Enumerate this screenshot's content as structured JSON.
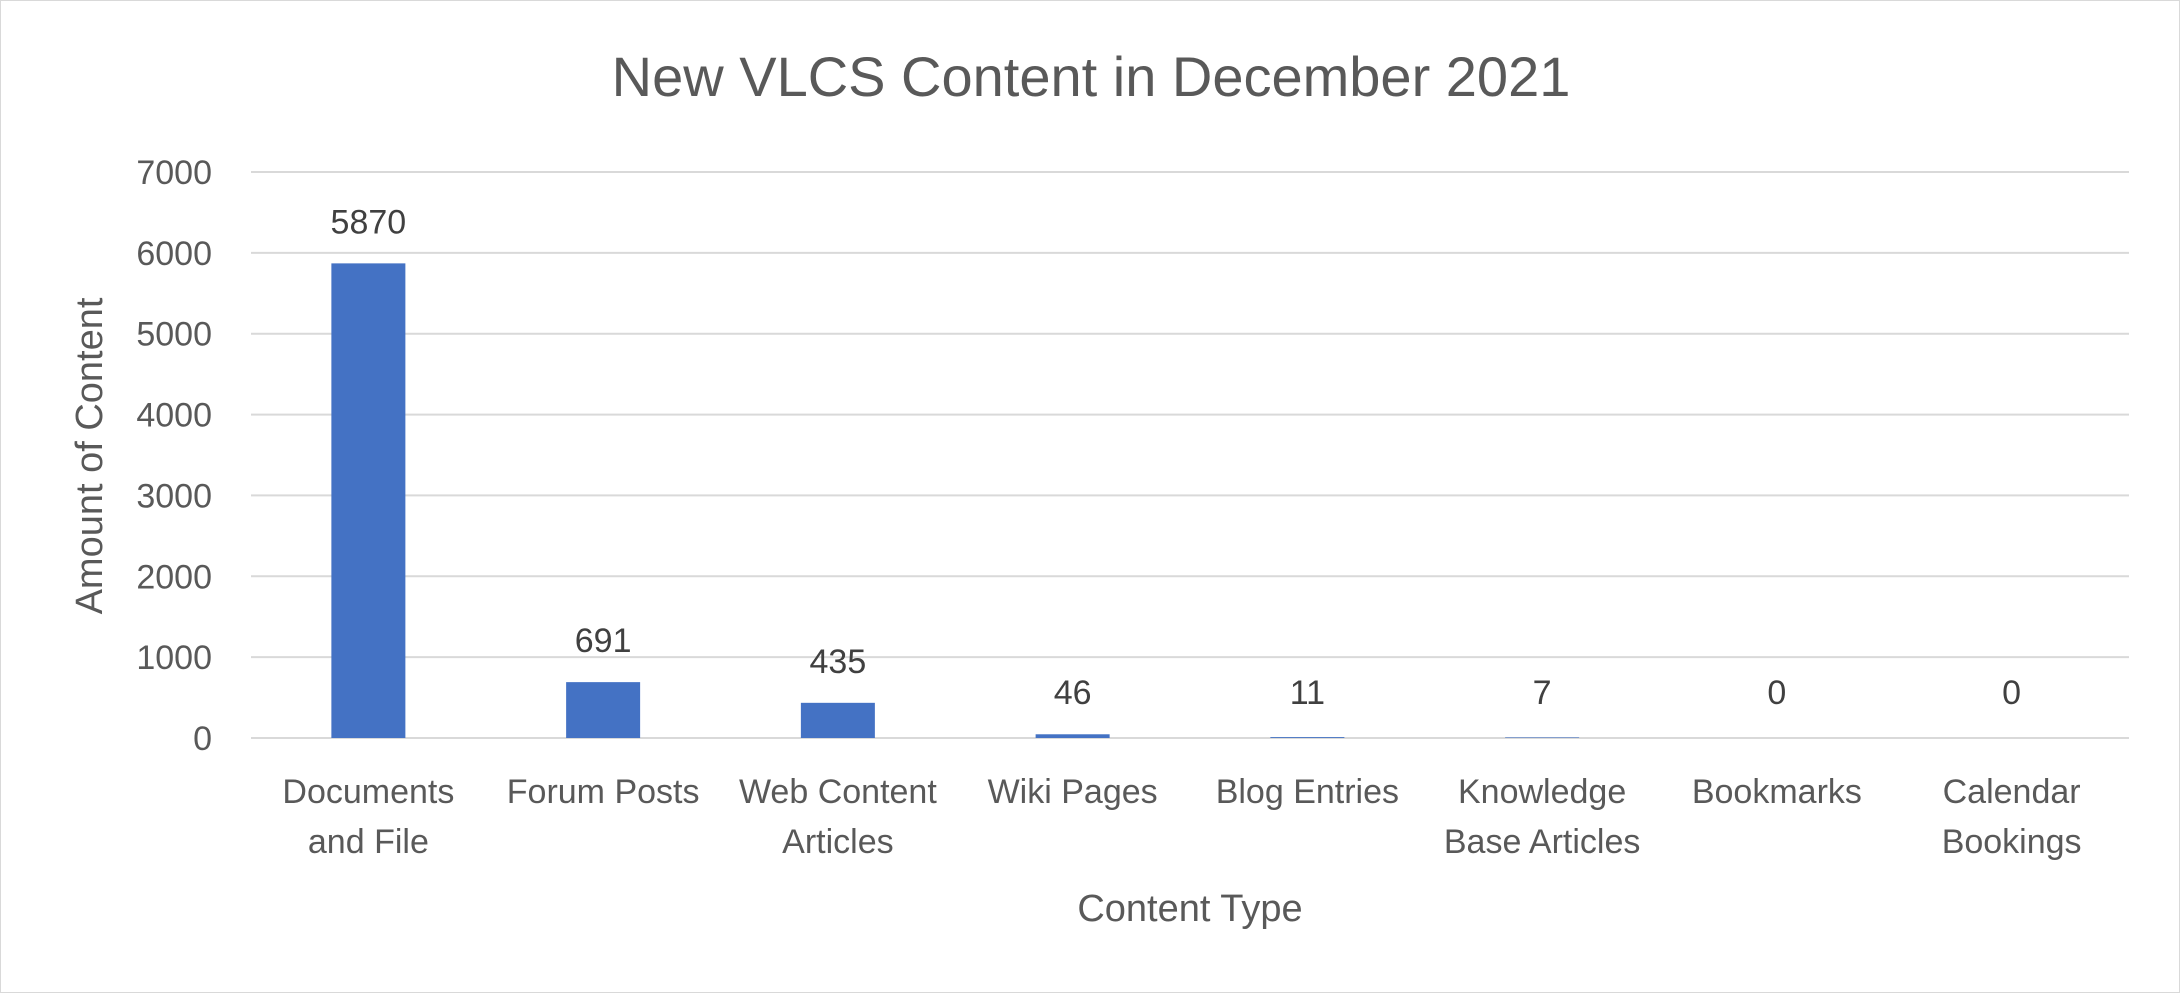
{
  "chart_data": {
    "type": "bar",
    "title": "New VLCS Content in December 2021",
    "xlabel": "Content Type",
    "ylabel": "Amount of Content",
    "ylim": [
      0,
      7000
    ],
    "yticks": [
      0,
      1000,
      2000,
      3000,
      4000,
      5000,
      6000,
      7000
    ],
    "grid": true,
    "legend": "none",
    "bar_color": "#4472c4",
    "categories": [
      [
        "Documents",
        "and File"
      ],
      [
        "Forum Posts"
      ],
      [
        "Web Content",
        "Articles"
      ],
      [
        "Wiki Pages"
      ],
      [
        "Blog Entries"
      ],
      [
        "Knowledge",
        "Base Articles"
      ],
      [
        "Bookmarks"
      ],
      [
        "Calendar",
        "Bookings"
      ]
    ],
    "values": [
      5870,
      691,
      435,
      46,
      11,
      7,
      0,
      0
    ]
  }
}
